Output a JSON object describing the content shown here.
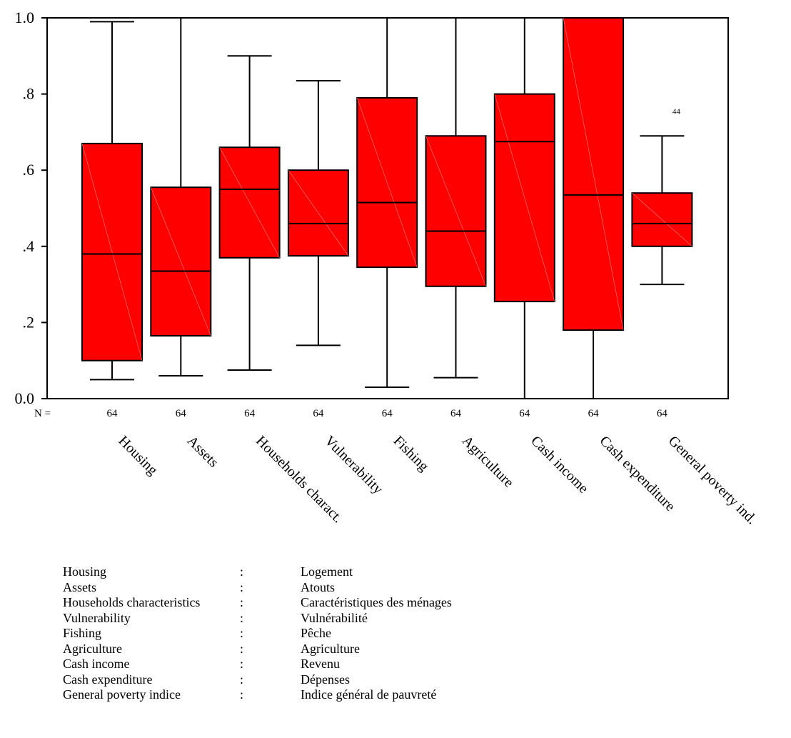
{
  "chart_data": {
    "type": "boxplot",
    "ylim": [
      0,
      1
    ],
    "y_ticks": [
      "0.0",
      ".2",
      ".4",
      ".6",
      ".8",
      "1.0"
    ],
    "y_tick_values": [
      0,
      0.2,
      0.4,
      0.6,
      0.8,
      1.0
    ],
    "n_label": "N =",
    "box_color": "#FF0000",
    "categories": [
      "Housing",
      "Assets",
      "Households charact.",
      "Vulnerability",
      "Fishing",
      "Agriculture",
      "Cash income",
      "Cash expenditure",
      "General poverty ind."
    ],
    "n": [
      "64",
      "64",
      "64",
      "64",
      "64",
      "64",
      "64",
      "64",
      "64"
    ],
    "boxes": [
      {
        "min": 0.05,
        "q1": 0.1,
        "median": 0.38,
        "q3": 0.67,
        "max": 0.99
      },
      {
        "min": 0.06,
        "q1": 0.165,
        "median": 0.335,
        "q3": 0.555,
        "max": 1.0
      },
      {
        "min": 0.075,
        "q1": 0.37,
        "median": 0.55,
        "q3": 0.66,
        "max": 0.9
      },
      {
        "min": 0.14,
        "q1": 0.375,
        "median": 0.46,
        "q3": 0.6,
        "max": 0.835
      },
      {
        "min": 0.03,
        "q1": 0.345,
        "median": 0.515,
        "q3": 0.79,
        "max": 1.0
      },
      {
        "min": 0.055,
        "q1": 0.295,
        "median": 0.44,
        "q3": 0.69,
        "max": 1.0
      },
      {
        "min": 0.0,
        "q1": 0.255,
        "median": 0.675,
        "q3": 0.8,
        "max": 1.0
      },
      {
        "min": 0.0,
        "q1": 0.18,
        "median": 0.535,
        "q3": 1.0,
        "max": 1.0
      },
      {
        "min": 0.3,
        "q1": 0.4,
        "median": 0.46,
        "q3": 0.54,
        "max": 0.69
      }
    ],
    "outliers": [
      {
        "category_index": 8,
        "value": 0.755,
        "label": "44"
      }
    ]
  },
  "legend": [
    {
      "en": "Housing",
      "sep": ":",
      "fr": "Logement"
    },
    {
      "en": "Assets",
      "sep": ":",
      "fr": "Atouts"
    },
    {
      "en": "Households characteristics",
      "sep": ":",
      "fr": "Caractéristiques des ménages"
    },
    {
      "en": "Vulnerability",
      "sep": ":",
      "fr": "Vulnérabilité"
    },
    {
      "en": "Fishing",
      "sep": ":",
      "fr": "Pêche"
    },
    {
      "en": "Agriculture",
      "sep": ":",
      "fr": "Agriculture"
    },
    {
      "en": "Cash income",
      "sep": ":",
      "fr": "Revenu"
    },
    {
      "en": "Cash expenditure",
      "sep": ":",
      "fr": "Dépenses"
    },
    {
      "en": "General poverty indice",
      "sep": ":",
      "fr": "Indice général de pauvreté"
    }
  ]
}
